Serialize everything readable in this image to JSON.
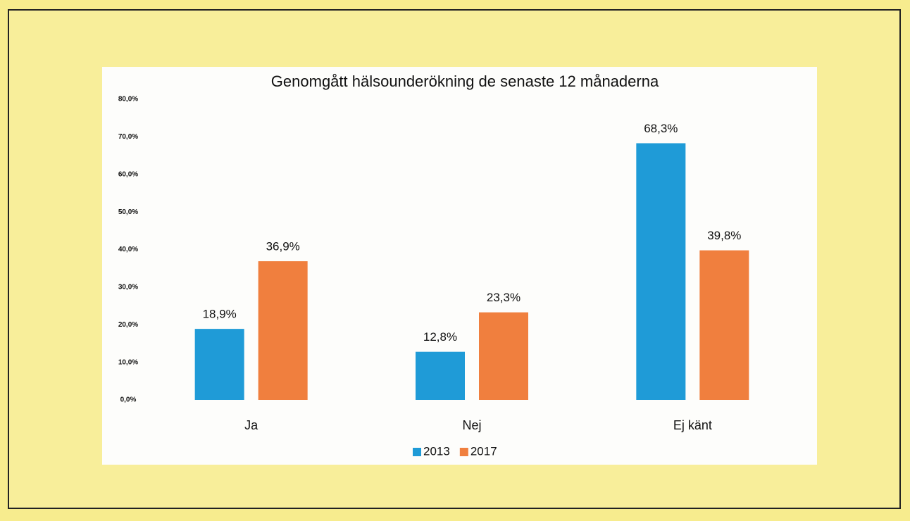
{
  "chart_data": {
    "type": "bar",
    "title": "Genomgått hälsounderökning de senaste 12 månaderna",
    "categories": [
      "Ja",
      "Nej",
      "Ej känt"
    ],
    "series": [
      {
        "name": "2013",
        "color": "#1f9bd7",
        "values": [
          18.9,
          12.8,
          68.3
        ],
        "value_labels": [
          "18,9%",
          "12,8%",
          "68,3%"
        ]
      },
      {
        "name": "2017",
        "color": "#f07f3e",
        "values": [
          36.9,
          23.3,
          39.8
        ],
        "value_labels": [
          "36,9%",
          "23,3%",
          "39,8%"
        ]
      }
    ],
    "ylim": [
      0,
      80
    ],
    "yticks": [
      {
        "value": 0,
        "label": "0,0%"
      },
      {
        "value": 10,
        "label": "10,0%"
      },
      {
        "value": 20,
        "label": "20,0%"
      },
      {
        "value": 30,
        "label": "30,0%"
      },
      {
        "value": 40,
        "label": "40,0%"
      },
      {
        "value": 50,
        "label": "50,0%"
      },
      {
        "value": 60,
        "label": "60,0%"
      },
      {
        "value": 70,
        "label": "70,0%"
      },
      {
        "value": 80,
        "label": "80,0%"
      }
    ],
    "grid": false,
    "legend": "bottom"
  }
}
